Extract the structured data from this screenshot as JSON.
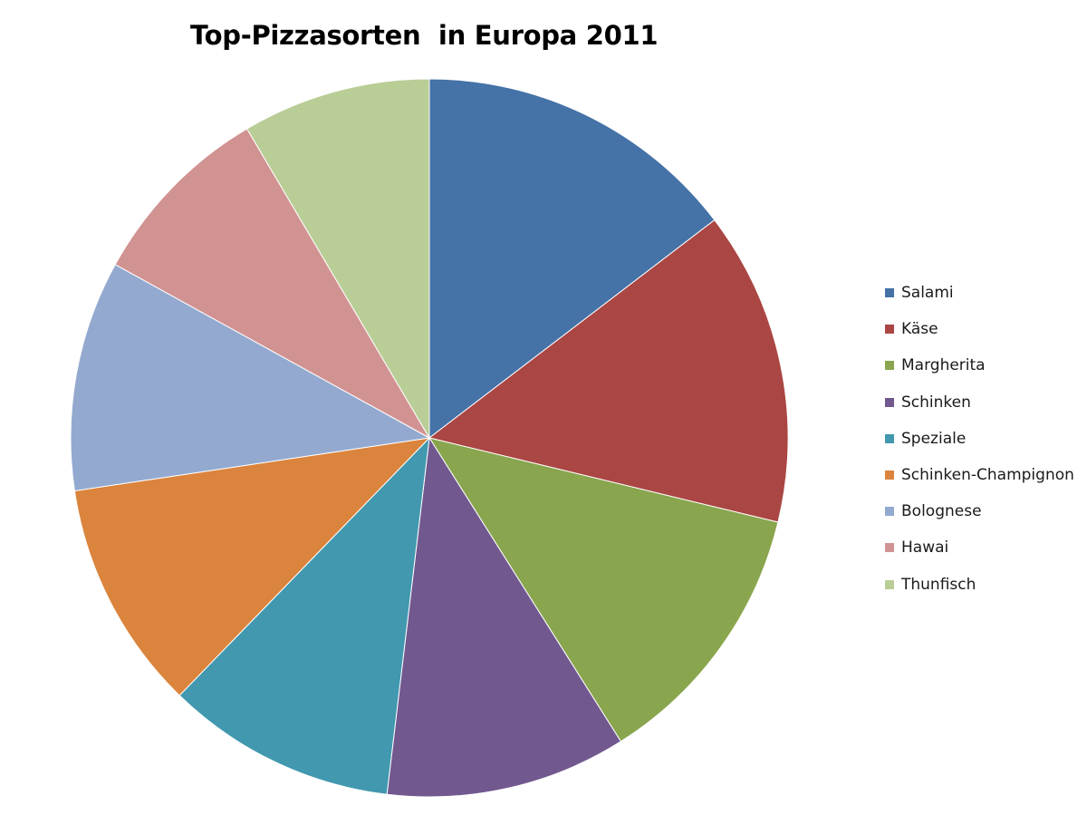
{
  "chart_data": {
    "type": "pie",
    "title": "Top-Pizzasorten  in Europa 2011",
    "legend_position": "right",
    "slices": [
      {
        "label": "Salami",
        "value": 15.5,
        "color": "#4572a7"
      },
      {
        "label": "Käse",
        "value": 15,
        "color": "#aa4643"
      },
      {
        "label": "Margherita",
        "value": 13,
        "color": "#89a54e"
      },
      {
        "label": "Schinken",
        "value": 11.5,
        "color": "#71588f"
      },
      {
        "label": "Speziale",
        "value": 11,
        "color": "#4198af"
      },
      {
        "label": "Schinken-Champignon",
        "value": 11,
        "color": "#db843d"
      },
      {
        "label": "Bolognese",
        "value": 11,
        "color": "#93a9cf"
      },
      {
        "label": "Hawai",
        "value": 9,
        "color": "#d19392"
      },
      {
        "label": "Thunfisch",
        "value": 9,
        "color": "#b9cd96"
      }
    ]
  }
}
